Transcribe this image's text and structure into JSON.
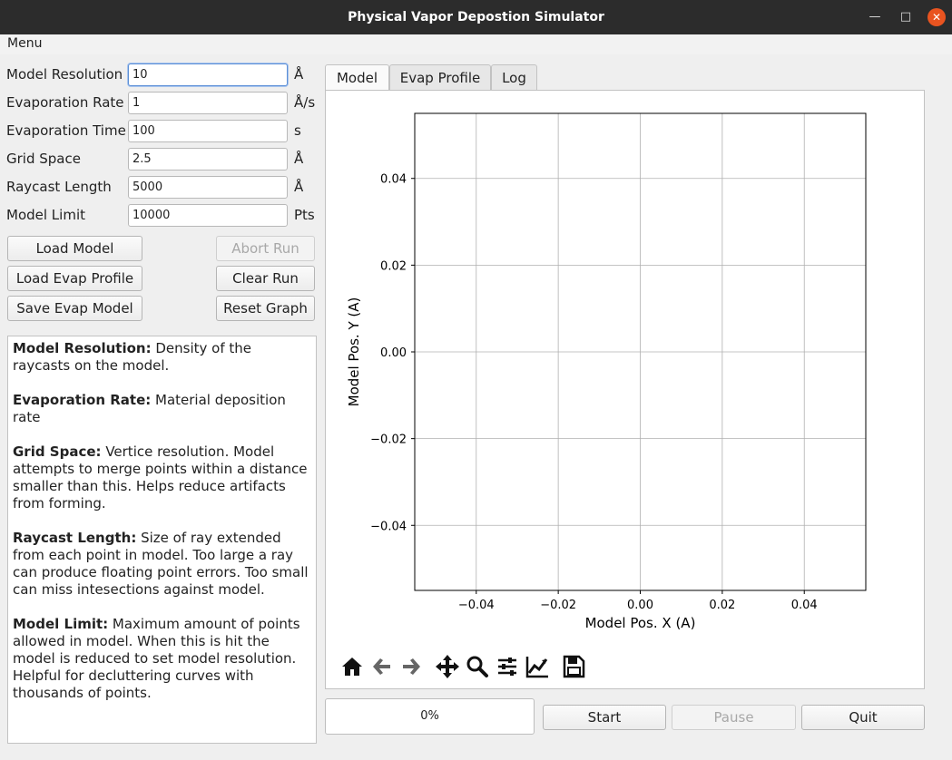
{
  "window": {
    "title": "Physical Vapor Depostion Simulator"
  },
  "menu": {
    "label": "Menu"
  },
  "fields": [
    {
      "label": "Model Resolution",
      "value": "10",
      "unit": "Å"
    },
    {
      "label": "Evaporation Rate",
      "value": "1",
      "unit": "Å/s"
    },
    {
      "label": "Evaporation Time",
      "value": "100",
      "unit": "s"
    },
    {
      "label": "Grid Space",
      "value": "2.5",
      "unit": "Å"
    },
    {
      "label": "Raycast Length",
      "value": "5000",
      "unit": "Å"
    },
    {
      "label": "Model Limit",
      "value": "10000",
      "unit": "Pts"
    }
  ],
  "buttons": {
    "load_model": "Load Model",
    "abort_run": "Abort Run",
    "load_evap_profile": "Load Evap Profile",
    "clear_run": "Clear Run",
    "save_evap_model": "Save Evap Model",
    "reset_graph": "Reset Graph",
    "start": "Start",
    "pause": "Pause",
    "quit": "Quit"
  },
  "help": [
    {
      "term": "Model Resolution:",
      "text": " Density of the raycasts on the model."
    },
    {
      "term": "Evaporation Rate:",
      "text": " Material deposition rate"
    },
    {
      "term": "Grid Space:",
      "text": " Vertice resolution. Model attempts to merge points within a distance smaller than this. Helps reduce artifacts from forming."
    },
    {
      "term": "Raycast Length:",
      "text": " Size of ray extended from each point in model. Too large a ray can produce floating point errors. Too small can miss intesections against model."
    },
    {
      "term": "Model Limit:",
      "text": " Maximum amount of points allowed in model. When this is hit the model is reduced to set model resolution."
    },
    {
      "term": "",
      "text": "Helpful for decluttering curves with thousands of points."
    }
  ],
  "tabs": [
    "Model",
    "Evap Profile",
    "Log"
  ],
  "progress": "0%",
  "plot_toolbar": [
    "home-icon",
    "back-arrow-icon",
    "forward-arrow-icon",
    "pan-icon",
    "zoom-icon",
    "configure-subplots-icon",
    "edit-axis-icon",
    "save-icon"
  ],
  "chart_data": {
    "type": "scatter",
    "x": [],
    "y": [],
    "xlabel": "Model Pos. X (A)",
    "ylabel": "Model Pos. Y (A)",
    "xlim": [
      -0.055,
      0.055
    ],
    "ylim": [
      -0.055,
      0.055
    ],
    "xticks": [
      -0.04,
      -0.02,
      0.0,
      0.02,
      0.04
    ],
    "xtick_labels": [
      "−0.04",
      "−0.02",
      "0.00",
      "0.02",
      "0.04"
    ],
    "yticks": [
      0.04,
      0.02,
      0.0,
      -0.02,
      -0.04
    ],
    "ytick_labels": [
      "0.04",
      "0.02",
      "0.00",
      "−0.02",
      "−0.04"
    ],
    "grid": true
  }
}
